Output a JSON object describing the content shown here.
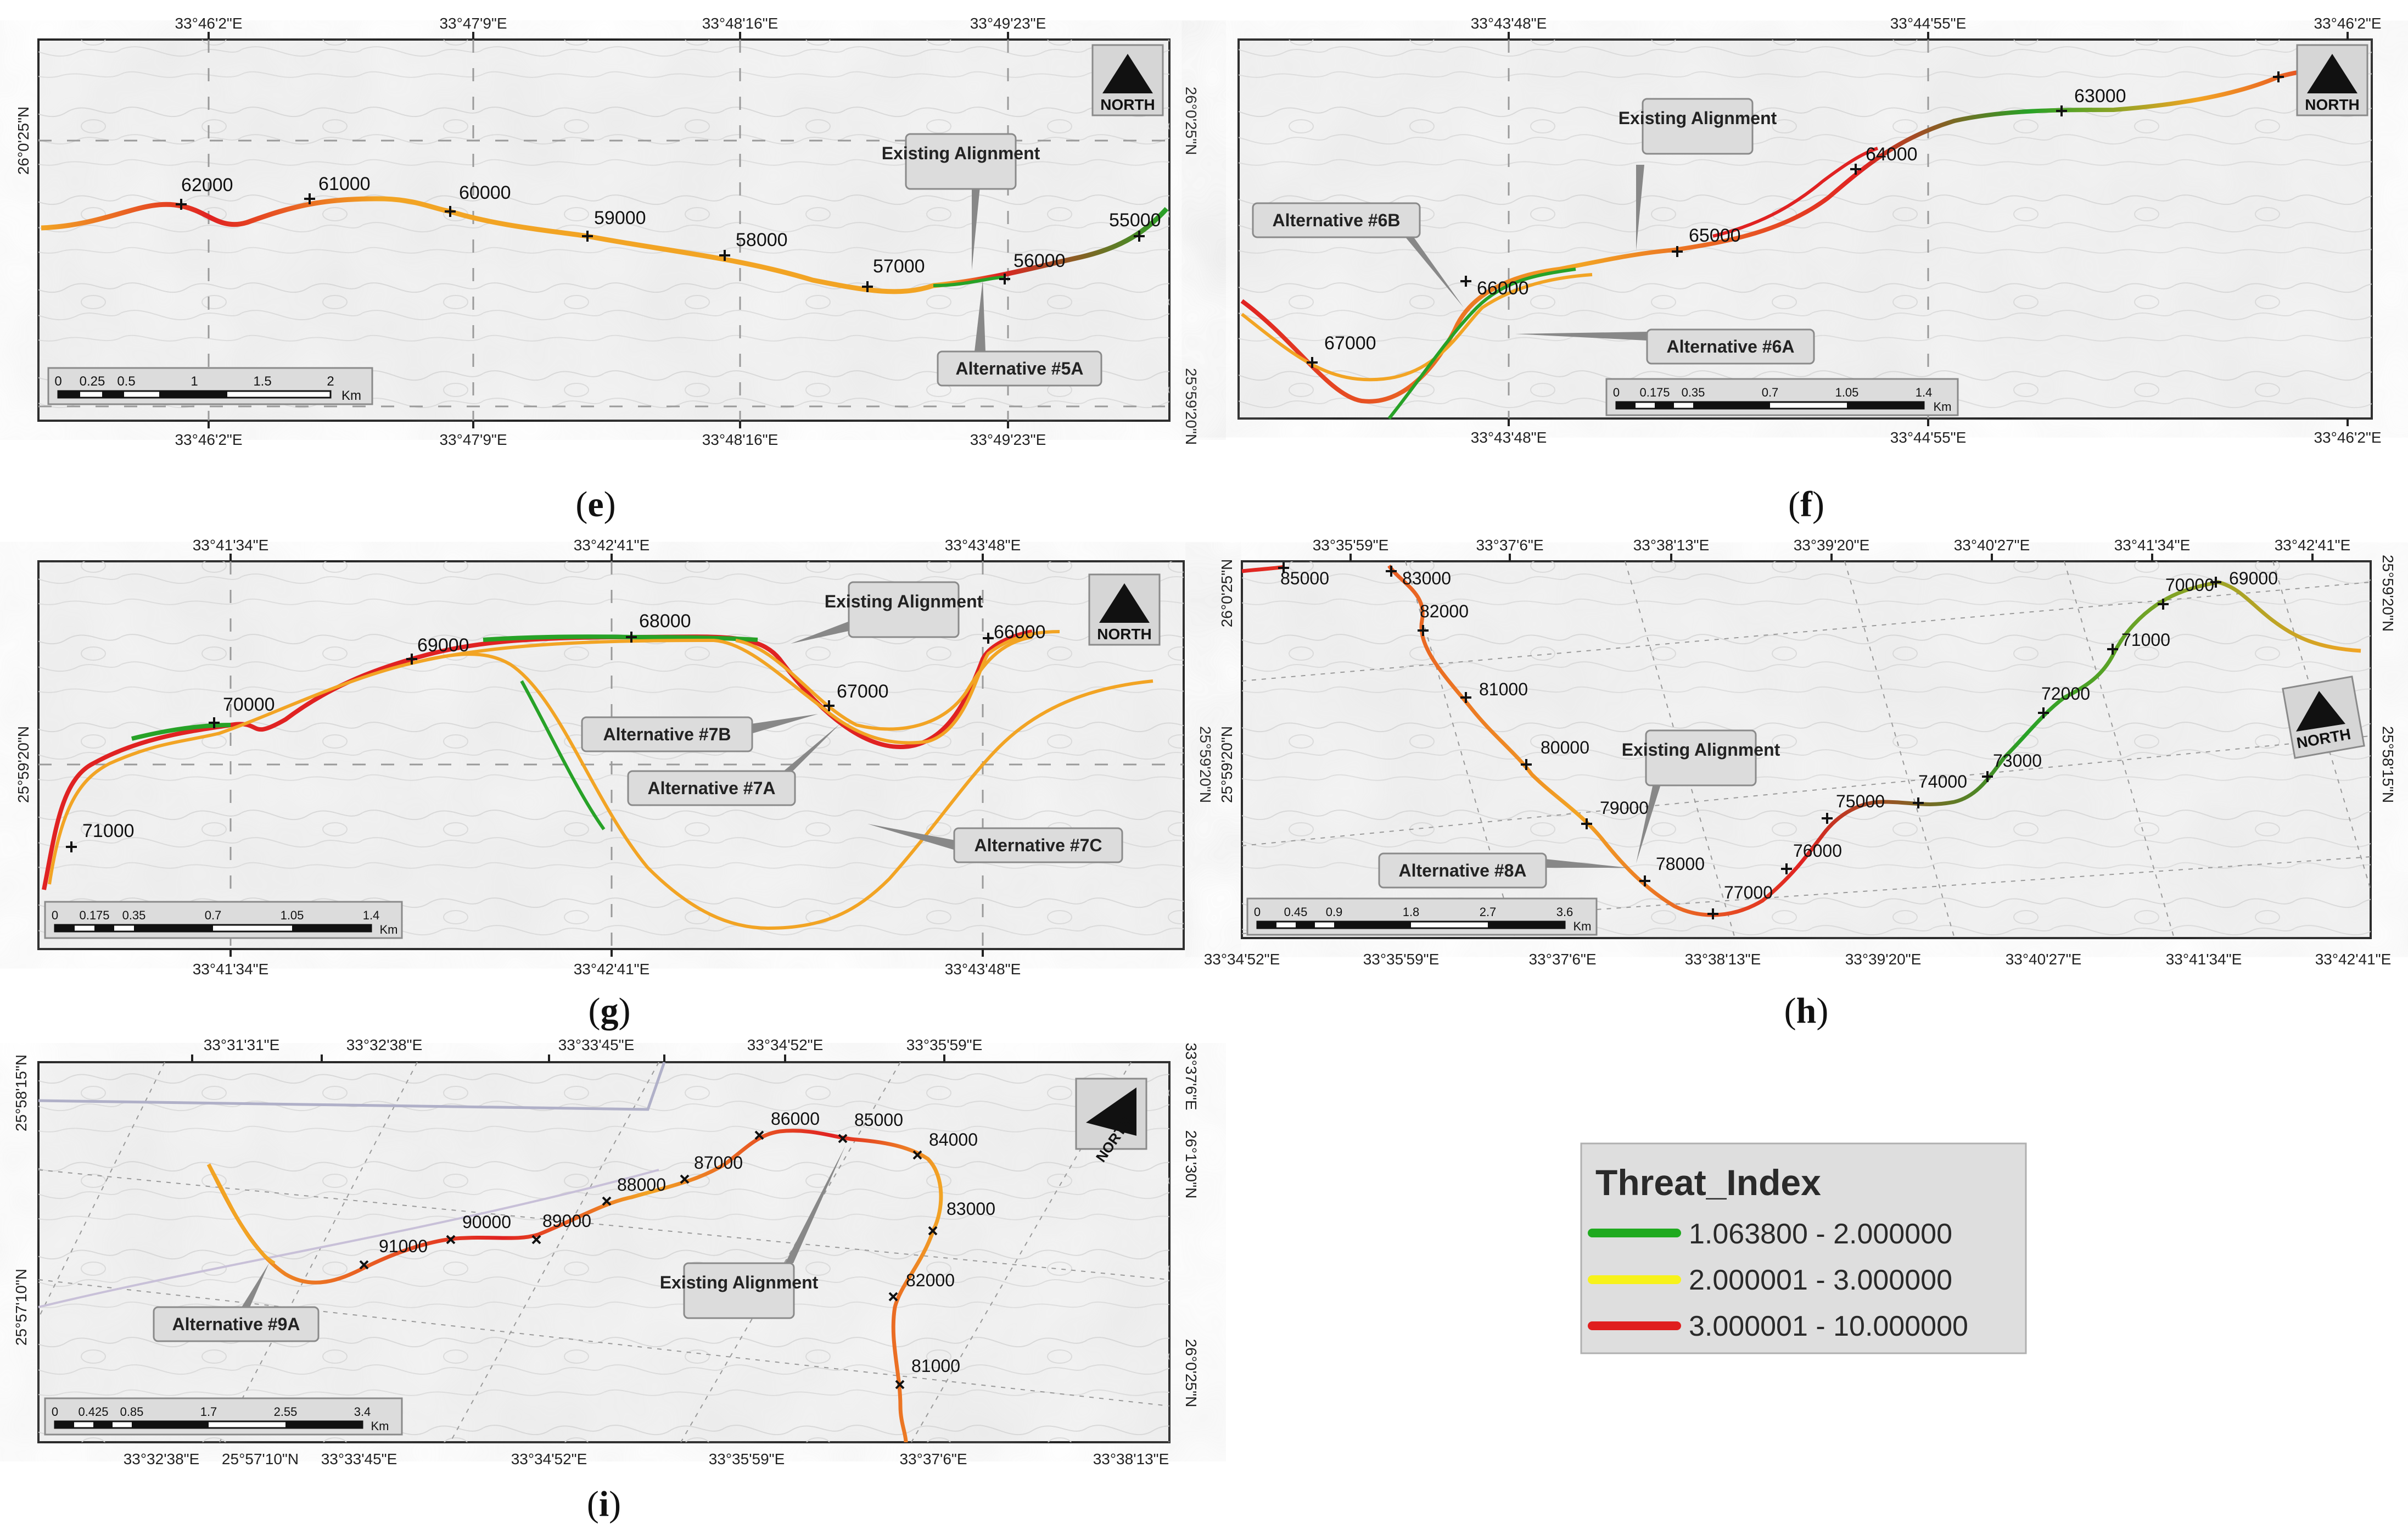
{
  "legend": {
    "title": "Threat_Index",
    "classes": [
      {
        "label": "1.063800 - 2.000000",
        "color": "#1faa1f"
      },
      {
        "label": "2.000001 - 3.000000",
        "color": "#f7f21a"
      },
      {
        "label": "3.000001 - 10.000000",
        "color": "#e01e1e"
      }
    ]
  },
  "colors": {
    "alignment_orange": "#f2a424",
    "alignment_green": "#27a227",
    "alignment_red": "#e02222"
  },
  "panels": {
    "e": {
      "caption": "e",
      "north": "NORTH",
      "top_lon": [
        "33°46'2\"E",
        "33°47'9\"E",
        "33°48'16\"E",
        "33°49'23\"E"
      ],
      "bottom_lon": [
        "33°46'2\"E",
        "33°47'9\"E",
        "33°48'16\"E",
        "33°49'23\"E"
      ],
      "left_lat": [
        "26°0'25\"N"
      ],
      "right_lat": [
        "26°0'25\"N",
        "25°59'20\"N"
      ],
      "stations": [
        "62000",
        "61000",
        "60000",
        "59000",
        "58000",
        "57000",
        "56000",
        "55000"
      ],
      "callouts": [
        "Existing Alignment",
        "Alternative #5A"
      ],
      "scale": {
        "ticks": [
          "0",
          "0.25",
          "0.5",
          "1",
          "1.5",
          "2"
        ],
        "unit": "Km"
      }
    },
    "f": {
      "caption": "f",
      "north": "NORTH",
      "top_lon": [
        "33°43'48\"E",
        "33°44'55\"E",
        "33°46'2\"E"
      ],
      "bottom_lon": [
        "33°43'48\"E",
        "33°44'55\"E",
        "33°46'2\"E"
      ],
      "stations": [
        "63000",
        "64000",
        "65000",
        "66000",
        "67000"
      ],
      "callouts": [
        "Existing Alignment",
        "Alternative #6B",
        "Alternative #6A"
      ],
      "scale": {
        "ticks": [
          "0",
          "0.175",
          "0.35",
          "0.7",
          "1.05",
          "1.4"
        ],
        "unit": "Km"
      }
    },
    "g": {
      "caption": "g",
      "north": "NORTH",
      "top_lon": [
        "33°41'34\"E",
        "33°42'41\"E",
        "33°43'48\"E"
      ],
      "bottom_lon": [
        "33°41'34\"E",
        "33°42'41\"E",
        "33°43'48\"E"
      ],
      "left_lat": [
        "25°59'20\"N"
      ],
      "right_lat": [
        "25°59'20\"N"
      ],
      "stations": [
        "69000",
        "68000",
        "67000",
        "66000",
        "70000",
        "71000"
      ],
      "callouts": [
        "Existing Alignment",
        "Alternative #7B",
        "Alternative #7A",
        "Alternative #7C"
      ],
      "scale": {
        "ticks": [
          "0",
          "0.175",
          "0.35",
          "0.7",
          "1.05",
          "1.4"
        ],
        "unit": "Km"
      }
    },
    "h": {
      "caption": "h",
      "north": "NORTH",
      "top_lon": [
        "33°35'59\"E",
        "33°37'6\"E",
        "33°38'13\"E",
        "33°39'20\"E",
        "33°40'27\"E",
        "33°41'34\"E",
        "33°42'41\"E"
      ],
      "bottom_lon": [
        "33°34'52\"E",
        "33°35'59\"E",
        "33°37'6\"E",
        "33°38'13\"E",
        "33°39'20\"E",
        "33°40'27\"E",
        "33°41'34\"E",
        "33°42'41\"E"
      ],
      "left_lat": [
        "26°0'25\"N",
        "25°59'20\"N"
      ],
      "right_lat": [
        "25°59'20\"N",
        "25°58'15\"N"
      ],
      "stations": [
        "85000",
        "83000",
        "82000",
        "81000",
        "80000",
        "79000",
        "78000",
        "77000",
        "76000",
        "75000",
        "74000",
        "73000",
        "72000",
        "71000",
        "70000",
        "69000"
      ],
      "callouts": [
        "Existing Alignment",
        "Alternative #8A"
      ],
      "scale": {
        "ticks": [
          "0",
          "0.45",
          "0.9",
          "1.8",
          "2.7",
          "3.6"
        ],
        "unit": "Km"
      }
    },
    "i": {
      "caption": "i",
      "north": "NORTH",
      "top_lon": [
        "33°31'31\"E",
        "33°32'38\"E",
        "33°33'45\"E",
        "33°34'52\"E",
        "33°35'59\"E"
      ],
      "bottom_lon": [
        "33°32'38\"E",
        "25°57'10\"N",
        "33°33'45\"E",
        "33°34'52\"E",
        "33°35'59\"E",
        "33°37'6\"E",
        "33°38'13\"E"
      ],
      "left_lat": [
        "25°58'15\"N",
        "25°57'10\"N"
      ],
      "right_lat": [
        "33°37'6\"E",
        "26°1'30\"N",
        "26°0'25\"N"
      ],
      "stations": [
        "86000",
        "85000",
        "84000",
        "87000",
        "88000",
        "89000",
        "90000",
        "91000",
        "83000",
        "82000",
        "81000"
      ],
      "callouts": [
        "Existing Alignment",
        "Alternative #9A"
      ],
      "scale": {
        "ticks": [
          "0",
          "0.425",
          "0.85",
          "1.7",
          "2.55",
          "3.4"
        ],
        "unit": "Km"
      }
    }
  }
}
